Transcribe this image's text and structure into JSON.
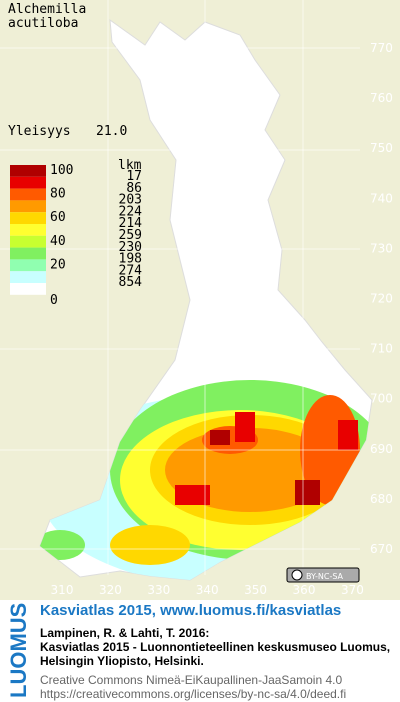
{
  "species": [
    "Alchemilla",
    "acutiloba"
  ],
  "frequency_label": "Yleisyys",
  "frequency": "21.0",
  "legend": {
    "count_header": "lkm",
    "scale_labels": [
      100,
      80,
      60,
      40,
      20,
      0
    ],
    "colors": [
      "#b00000",
      "#e80000",
      "#ff5a00",
      "#ff9a00",
      "#ffd800",
      "#ffff30",
      "#c8ff30",
      "#80f060",
      "#90ffb0",
      "#c8ffff",
      "#ffffff"
    ],
    "counts": [
      17,
      86,
      203,
      224,
      214,
      259,
      230,
      198,
      274,
      854
    ]
  },
  "y_labels": [
    770,
    760,
    750,
    740,
    730,
    720,
    710,
    700,
    690,
    680,
    670
  ],
  "x_labels": [
    310,
    320,
    330,
    340,
    350,
    360,
    370
  ],
  "license_badge": "BY-NC-SA",
  "footer": {
    "brand": "LUOMUS",
    "headline": "Kasviatlas 2015, www.luomus.fi/kasviatlas",
    "citation": [
      "Lampinen, R. & Lahti, T. 2016:",
      "Kasviatlas 2015 - Luonnontieteellinen keskusmuseo Luomus,",
      "Helsingin Yliopisto, Helsinki."
    ],
    "license": [
      "Creative Commons Nimeä-EiKaupallinen-JaaSamoin 4.0",
      "https://creativecommons.org/licenses/by-nc-sa/4.0/deed.fi"
    ]
  }
}
